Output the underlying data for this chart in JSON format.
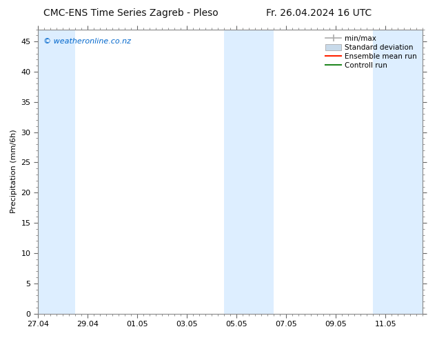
{
  "title": "CMC-ENS Time Series Zagreb - Pleso",
  "title_right": "Fr. 26.04.2024 16 UTC",
  "ylabel": "Precipitation (mm/6h)",
  "watermark": "© weatheronline.co.nz",
  "watermark_color": "#0066cc",
  "ylim": [
    0,
    47
  ],
  "yticks": [
    0,
    5,
    10,
    15,
    20,
    25,
    30,
    35,
    40,
    45
  ],
  "xlim": [
    0,
    15.5
  ],
  "xtick_positions": [
    0,
    2,
    4,
    6,
    8,
    10,
    12,
    14
  ],
  "xtick_labels": [
    "27.04",
    "29.04",
    "01.05",
    "03.05",
    "05.05",
    "07.05",
    "09.05",
    "11.05"
  ],
  "shaded_bands": [
    {
      "x_start": 0.0,
      "x_end": 1.5
    },
    {
      "x_start": 7.5,
      "x_end": 9.5
    },
    {
      "x_start": 13.5,
      "x_end": 15.5
    }
  ],
  "band_color": "#ddeeff",
  "background_color": "#ffffff",
  "plot_bg_color": "#ffffff",
  "legend_labels": [
    "min/max",
    "Standard deviation",
    "Ensemble mean run",
    "Controll run"
  ],
  "legend_colors_line": [
    "#aaaaaa",
    "#bbccdd",
    "#ff0000",
    "#00aa00"
  ],
  "font_size_title": 10,
  "font_size_labels": 8,
  "font_size_ticks": 8,
  "font_size_watermark": 8,
  "font_size_legend": 7.5
}
